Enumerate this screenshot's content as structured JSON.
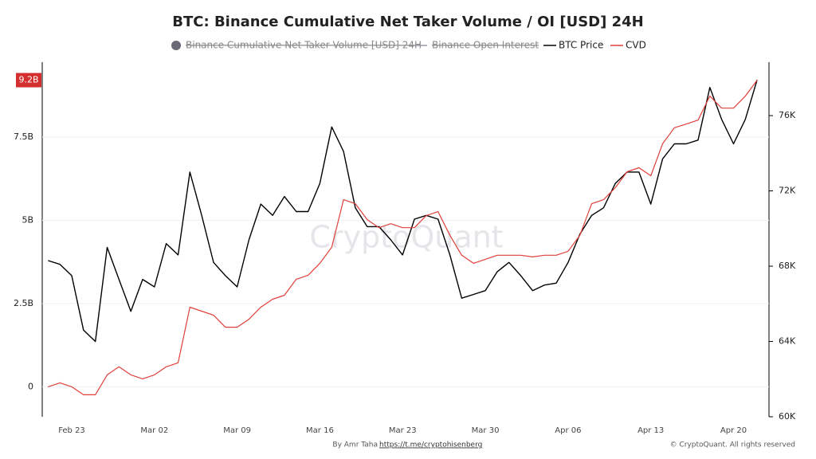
{
  "chart_data": {
    "type": "line",
    "title": "BTC: Binance Cumulative Net Taker Volume / OI [USD] 24H",
    "categories": [
      null,
      null,
      "Feb 23",
      null,
      null,
      null,
      null,
      null,
      null,
      "Mar 02",
      null,
      null,
      null,
      null,
      null,
      null,
      "Mar 09",
      null,
      null,
      null,
      null,
      null,
      null,
      "Mar 16",
      null,
      null,
      null,
      null,
      null,
      null,
      "Mar 23",
      null,
      null,
      null,
      null,
      null,
      null,
      "Mar 30",
      null,
      null,
      null,
      null,
      null,
      null,
      "Apr 06",
      null,
      null,
      null,
      null,
      null,
      null,
      "Apr 13",
      null,
      null,
      null,
      null,
      null,
      null,
      "Apr 20",
      null,
      null
    ],
    "series": [
      {
        "name": "Binance Cumulative Net Taker Volume [USD] 24H",
        "color": "#6b6b78",
        "visible": false,
        "marker": "circle"
      },
      {
        "name": "Binance Open Interest",
        "color": "#9a9aa5",
        "visible": false,
        "marker": "line"
      },
      {
        "name": "BTC Price",
        "color": "#000000",
        "axis": "y2",
        "marker": "line",
        "values": [
          68300,
          68100,
          67500,
          64600,
          64000,
          69000,
          67300,
          65600,
          67300,
          66900,
          69200,
          68600,
          73000,
          70700,
          68200,
          67500,
          66900,
          69400,
          71300,
          70700,
          71700,
          70900,
          70900,
          72400,
          75400,
          74100,
          71100,
          70100,
          70100,
          69400,
          68600,
          70500,
          70700,
          70500,
          68600,
          66300,
          66500,
          66700,
          67700,
          68200,
          67500,
          66700,
          67000,
          67100,
          68200,
          69700,
          70700,
          71100,
          72400,
          73000,
          73000,
          71300,
          73700,
          74500,
          74500,
          74700,
          77500,
          75800,
          74500,
          75800,
          77900
        ]
      },
      {
        "name": "CVD",
        "color": "#e0403a",
        "marker": "line",
        "values": [
          0,
          120000000,
          0,
          -240000000,
          -240000000,
          360000000,
          600000000,
          360000000,
          240000000,
          360000000,
          600000000,
          720000000,
          2390000000,
          2270000000,
          2150000000,
          1790000000,
          1790000000,
          2030000000,
          2390000000,
          2630000000,
          2750000000,
          3230000000,
          3350000000,
          3710000000,
          4190000000,
          5620000000,
          5500000000,
          5020000000,
          4780000000,
          4900000000,
          4780000000,
          4780000000,
          5140000000,
          5260000000,
          4550000000,
          3950000000,
          3710000000,
          3830000000,
          3950000000,
          3950000000,
          3950000000,
          3900000000,
          3950000000,
          3950000000,
          4070000000,
          4550000000,
          5500000000,
          5620000000,
          5980000000,
          6460000000,
          6580000000,
          6340000000,
          7300000000,
          7780000000,
          7890000000,
          8010000000,
          8730000000,
          8370000000,
          8370000000,
          8730000000,
          9210000000
        ],
        "value_labels": [
          null,
          null,
          null,
          null,
          null,
          null,
          null,
          null,
          null,
          null,
          null,
          null,
          null,
          null,
          null,
          null,
          null,
          null,
          null,
          null,
          null,
          null,
          null,
          null,
          null,
          null,
          null,
          null,
          null,
          null,
          null,
          null,
          null,
          null,
          null,
          null,
          null,
          null,
          null,
          null,
          null,
          null,
          null,
          null,
          null,
          null,
          null,
          null,
          null,
          null,
          null,
          null,
          null,
          null,
          null,
          null,
          null,
          null,
          null,
          null,
          "9.2B"
        ]
      }
    ],
    "ylim": [
      -900000000,
      9750000000
    ],
    "yticks": [
      0,
      {
        "value": 2500000000,
        "label": "2.5B"
      },
      {
        "value": 5000000000,
        "label": "5B"
      },
      {
        "value": 7500000000,
        "label": "7.5B"
      }
    ],
    "y2lim": [
      60000,
      78840
    ],
    "y2ticks": [
      {
        "value": 60000,
        "label": "60K"
      },
      {
        "value": 64000,
        "label": "64K"
      },
      {
        "value": 68000,
        "label": "68K"
      },
      {
        "value": 72000,
        "label": "72K"
      },
      {
        "value": 76000,
        "label": "76K"
      }
    ],
    "grid": true
  },
  "watermark": "CryptoQuant",
  "footer": {
    "author": "By Amr Taha",
    "link": "https://t.me/cryptohisenberg",
    "copyright": "© CryptoQuant. All rights reserved"
  }
}
